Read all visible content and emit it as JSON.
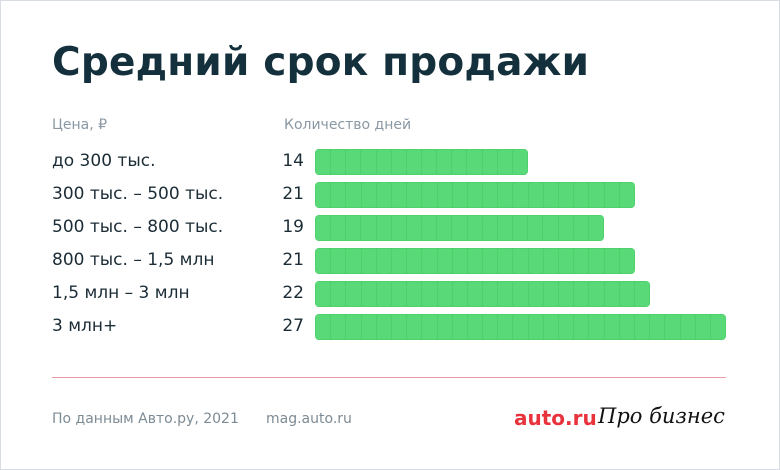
{
  "header": {
    "title": "Средний срок продажи"
  },
  "columns": {
    "price": "Цена, ₽",
    "days": "Количество дней"
  },
  "chart_data": {
    "type": "bar",
    "orientation": "horizontal",
    "title": "Средний срок продажи",
    "xlabel": "Количество дней",
    "ylabel": "Цена, ₽",
    "categories": [
      "до 300 тыс.",
      "300 тыс. – 500 тыс.",
      "500 тыс. – 800 тыс.",
      "800 тыс. – 1,5 млн",
      "1,5 млн – 3 млн",
      "3 млн+"
    ],
    "values": [
      14,
      21,
      19,
      21,
      22,
      27
    ],
    "xlim": [
      0,
      27
    ],
    "bar_color": "#4cd16b"
  },
  "footer": {
    "source": "По данным Авто.ру, 2021",
    "site": "mag.auto.ru",
    "brand_auto": "auto.ru",
    "brand_pro": "Про бизнес"
  },
  "colors": {
    "title": "#14303d",
    "accent_red": "#e8323c",
    "divider": "#e79aa4"
  }
}
